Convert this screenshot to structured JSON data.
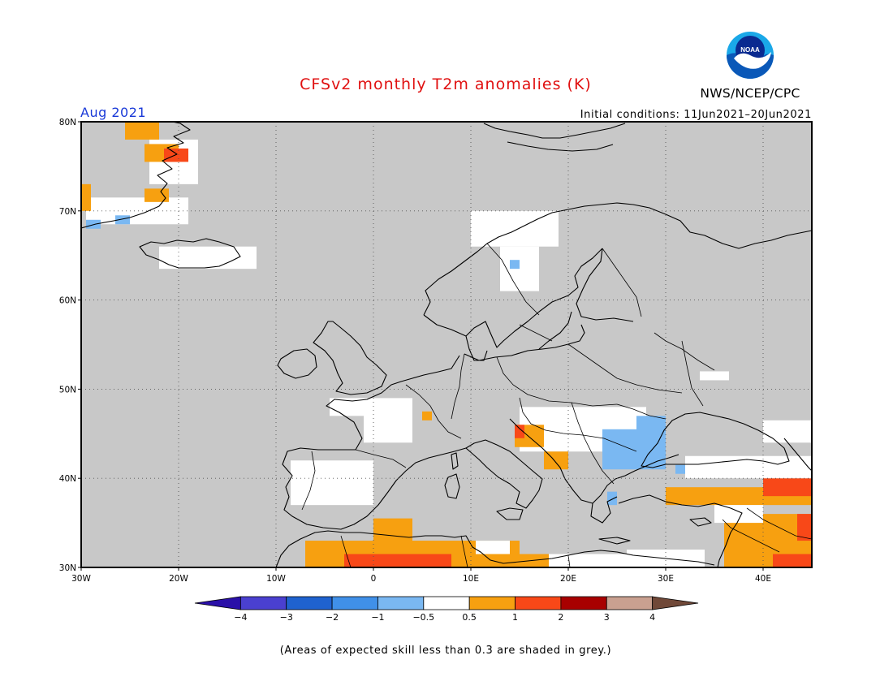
{
  "header": {
    "title": "CFSv2 monthly T2m anomalies (K)",
    "month": "Aug 2021",
    "initial_conditions": "Initial conditions: 11Jun2021–20Jun2021",
    "org": "NWS/NCEP/CPC",
    "logo_text": "NOAA"
  },
  "map": {
    "lon_range": [
      -30,
      45
    ],
    "lat_range": [
      30,
      80
    ],
    "x_ticks": [
      {
        "lon": -30,
        "label": "30W"
      },
      {
        "lon": -20,
        "label": "20W"
      },
      {
        "lon": -10,
        "label": "10W"
      },
      {
        "lon": 0,
        "label": "0"
      },
      {
        "lon": 10,
        "label": "10E"
      },
      {
        "lon": 20,
        "label": "20E"
      },
      {
        "lon": 30,
        "label": "30E"
      },
      {
        "lon": 40,
        "label": "40E"
      }
    ],
    "y_ticks": [
      {
        "lat": 30,
        "label": "30N"
      },
      {
        "lat": 40,
        "label": "40N"
      },
      {
        "lat": 50,
        "label": "50N"
      },
      {
        "lat": 60,
        "label": "60N"
      },
      {
        "lat": 70,
        "label": "70N"
      },
      {
        "lat": 80,
        "label": "80N"
      }
    ],
    "background_color": "#c8c8c8",
    "grid": true
  },
  "colorbar": {
    "tick_labels": [
      "−4",
      "−3",
      "−2",
      "−1",
      "−0.5",
      "0.5",
      "1",
      "2",
      "3",
      "4"
    ],
    "colors": [
      "#2a10a8",
      "#4a40d0",
      "#1f62cf",
      "#4090e8",
      "#7ab8f2",
      "#ffffff",
      "#f7a010",
      "#f84818",
      "#a80000",
      "#c9a090",
      "#704838"
    ]
  },
  "footnote": "(Areas of expected skill less than 0.3 are shaded in grey.)",
  "anomaly_regions": [
    {
      "c": 5,
      "lon": [
        -29.5,
        -19
      ],
      "lat": [
        68.5,
        71.5
      ]
    },
    {
      "c": 5,
      "lon": [
        -23,
        -18
      ],
      "lat": [
        73,
        78
      ]
    },
    {
      "c": 6,
      "lon": [
        -30,
        -29
      ],
      "lat": [
        70,
        73
      ]
    },
    {
      "c": 6,
      "lon": [
        -25.5,
        -22
      ],
      "lat": [
        78,
        80
      ]
    },
    {
      "c": 6,
      "lon": [
        -23.5,
        -20
      ],
      "lat": [
        75.5,
        77.5
      ]
    },
    {
      "c": 6,
      "lon": [
        -23.5,
        -21
      ],
      "lat": [
        71,
        72.5
      ]
    },
    {
      "c": 7,
      "lon": [
        -21.5,
        -19
      ],
      "lat": [
        75.5,
        77
      ]
    },
    {
      "c": 4,
      "lon": [
        -26.5,
        -25
      ],
      "lat": [
        68.5,
        69.5
      ]
    },
    {
      "c": 4,
      "lon": [
        -29.5,
        -28
      ],
      "lat": [
        68,
        69
      ]
    },
    {
      "c": 5,
      "lon": [
        -22,
        -12
      ],
      "lat": [
        63.5,
        66
      ]
    },
    {
      "c": 5,
      "lon": [
        10,
        19
      ],
      "lat": [
        66,
        70
      ]
    },
    {
      "c": 5,
      "lon": [
        13,
        17
      ],
      "lat": [
        61,
        66
      ]
    },
    {
      "c": 4,
      "lon": [
        14,
        15
      ],
      "lat": [
        63.5,
        64.5
      ]
    },
    {
      "c": 5,
      "lon": [
        -1,
        4
      ],
      "lat": [
        44,
        49
      ]
    },
    {
      "c": 5,
      "lon": [
        -4.5,
        -1
      ],
      "lat": [
        47,
        49
      ]
    },
    {
      "c": 6,
      "lon": [
        5,
        6
      ],
      "lat": [
        46.5,
        47.5
      ]
    },
    {
      "c": 5,
      "lon": [
        -8.5,
        0
      ],
      "lat": [
        37,
        42
      ]
    },
    {
      "c": 5,
      "lon": [
        15,
        28
      ],
      "lat": [
        43,
        48
      ]
    },
    {
      "c": 4,
      "lon": [
        23.5,
        30
      ],
      "lat": [
        41,
        45.5
      ]
    },
    {
      "c": 4,
      "lon": [
        27,
        30
      ],
      "lat": [
        45,
        47
      ]
    },
    {
      "c": 4,
      "lon": [
        24,
        25
      ],
      "lat": [
        37,
        38.5
      ]
    },
    {
      "c": 4,
      "lon": [
        31,
        33
      ],
      "lat": [
        40.5,
        41.5
      ]
    },
    {
      "c": 6,
      "lon": [
        14.5,
        17.5
      ],
      "lat": [
        43.5,
        46
      ]
    },
    {
      "c": 6,
      "lon": [
        17.5,
        20
      ],
      "lat": [
        41,
        43
      ]
    },
    {
      "c": 7,
      "lon": [
        14.5,
        15.5
      ],
      "lat": [
        44.5,
        46
      ]
    },
    {
      "c": 6,
      "lon": [
        30,
        45
      ],
      "lat": [
        37,
        39
      ]
    },
    {
      "c": 6,
      "lon": [
        36,
        45
      ],
      "lat": [
        30,
        36
      ]
    },
    {
      "c": 7,
      "lon": [
        40,
        45
      ],
      "lat": [
        38,
        40
      ]
    },
    {
      "c": 7,
      "lon": [
        41,
        45
      ],
      "lat": [
        30,
        31.5
      ]
    },
    {
      "c": 7,
      "lon": [
        43.5,
        45
      ],
      "lat": [
        33,
        36
      ]
    },
    {
      "c": 6,
      "lon": [
        -7,
        15
      ],
      "lat": [
        30,
        33
      ]
    },
    {
      "c": 7,
      "lon": [
        -3,
        8
      ],
      "lat": [
        30,
        31.5
      ]
    },
    {
      "c": 6,
      "lon": [
        0,
        4
      ],
      "lat": [
        32.5,
        35.5
      ]
    },
    {
      "c": 6,
      "lon": [
        15,
        18
      ],
      "lat": [
        30,
        31.5
      ]
    },
    {
      "c": 5,
      "lon": [
        10.5,
        14
      ],
      "lat": [
        31.5,
        33
      ]
    },
    {
      "c": 5,
      "lon": [
        18,
        26
      ],
      "lat": [
        30,
        31.5
      ]
    },
    {
      "c": 5,
      "lon": [
        26,
        34
      ],
      "lat": [
        30,
        32
      ]
    },
    {
      "c": 5,
      "lon": [
        35,
        40
      ],
      "lat": [
        35,
        37
      ]
    },
    {
      "c": 5,
      "lon": [
        32,
        45
      ],
      "lat": [
        40,
        42.5
      ]
    },
    {
      "c": 5,
      "lon": [
        33.5,
        36.5
      ],
      "lat": [
        51,
        52
      ]
    },
    {
      "c": 5,
      "lon": [
        40,
        45
      ],
      "lat": [
        44,
        46.5
      ]
    }
  ]
}
